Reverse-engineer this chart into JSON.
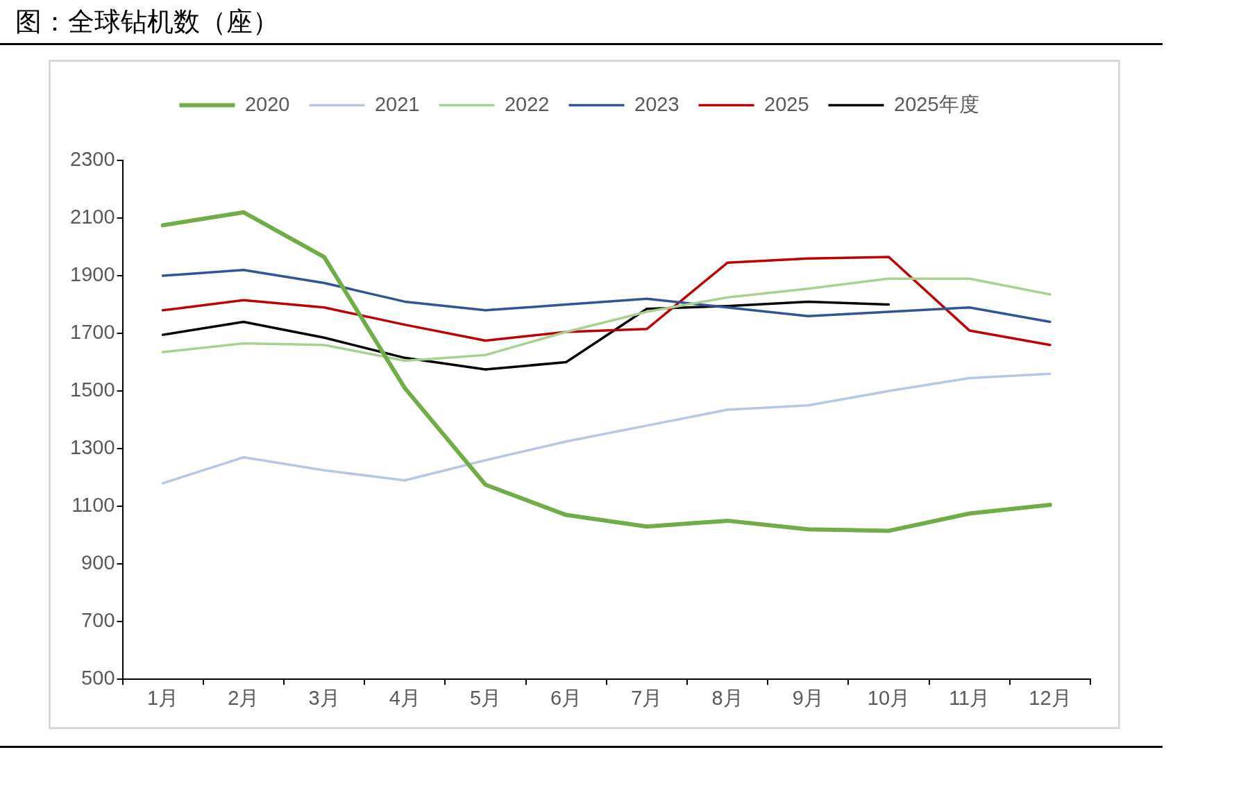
{
  "chart_data": {
    "type": "line",
    "title": "图：全球钻机数（座）",
    "categories": [
      "1月",
      "2月",
      "3月",
      "4月",
      "5月",
      "6月",
      "7月",
      "8月",
      "9月",
      "10月",
      "11月",
      "12月"
    ],
    "series": [
      {
        "name": "2020",
        "color": "#70ad47",
        "values": [
          2075,
          2120,
          1965,
          1510,
          1175,
          1070,
          1030,
          1050,
          1020,
          1015,
          1075,
          1105
        ]
      },
      {
        "name": "2021",
        "color": "#b4c7e7",
        "values": [
          1180,
          1270,
          1225,
          1190,
          1260,
          1325,
          1380,
          1435,
          1450,
          1500,
          1545,
          1560
        ]
      },
      {
        "name": "2022",
        "color": "#a9d18e",
        "values": [
          1635,
          1665,
          1660,
          1605,
          1625,
          1705,
          1775,
          1825,
          1855,
          1890,
          1890,
          1835
        ]
      },
      {
        "name": "2023",
        "color": "#2f5597",
        "values": [
          1900,
          1920,
          1875,
          1810,
          1780,
          1800,
          1820,
          1790,
          1760,
          1775,
          1790,
          1740
        ]
      },
      {
        "name": "2025",
        "color": "#c00000",
        "values": [
          1780,
          1815,
          1790,
          1730,
          1675,
          1705,
          1715,
          1945,
          1960,
          1965,
          1710,
          1660
        ]
      },
      {
        "name": "2025年度",
        "color": "#000000",
        "values": [
          1695,
          1740,
          1685,
          1615,
          1575,
          1600,
          1785,
          1795,
          1810,
          1800,
          null,
          null
        ]
      }
    ],
    "ylim": [
      500,
      2300
    ],
    "yticks": [
      500,
      700,
      900,
      1100,
      1300,
      1500,
      1700,
      1900,
      2100,
      2300
    ],
    "grid": false,
    "legend": "top",
    "marker": "none",
    "line_style": "solid"
  }
}
